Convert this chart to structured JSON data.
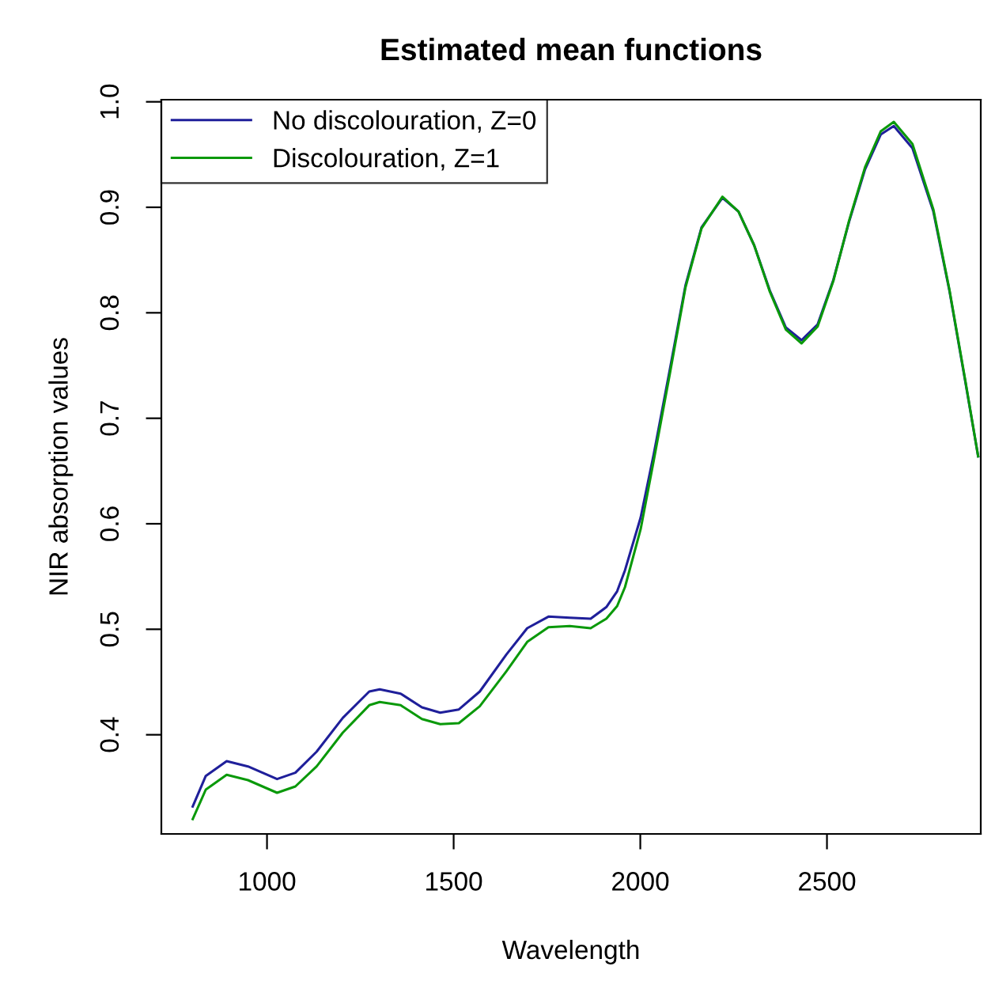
{
  "chart_data": {
    "type": "line",
    "title": "Estimated mean functions",
    "xlabel": "Wavelength",
    "ylabel": "NIR absorption values",
    "xlim": [
      717,
      2912
    ],
    "ylim": [
      0.306,
      1.002
    ],
    "xticks": [
      1000,
      1500,
      2000,
      2500
    ],
    "yticks": [
      0.4,
      0.5,
      0.6,
      0.7,
      0.8,
      0.9,
      {
        "value": 1.0,
        "label": "1.0"
      }
    ],
    "grid": false,
    "legend": "top left",
    "marker": "none",
    "line_style": "solid",
    "series": [
      {
        "name": "No discolouration, Z=0",
        "color": "#1f1f9a",
        "x": [
          801,
          836,
          892,
          949,
          1027,
          1076,
          1133,
          1203,
          1274,
          1302,
          1358,
          1415,
          1464,
          1514,
          1570,
          1641,
          1697,
          1754,
          1811,
          1867,
          1909,
          1938,
          1959,
          2001,
          2036,
          2079,
          2121,
          2164,
          2220,
          2263,
          2305,
          2347,
          2390,
          2432,
          2475,
          2517,
          2559,
          2602,
          2644,
          2679,
          2729,
          2785,
          2828,
          2870,
          2905
        ],
        "values": [
          0.332,
          0.361,
          0.375,
          0.37,
          0.358,
          0.364,
          0.384,
          0.416,
          0.441,
          0.443,
          0.439,
          0.426,
          0.421,
          0.424,
          0.441,
          0.476,
          0.501,
          0.512,
          0.511,
          0.51,
          0.521,
          0.536,
          0.556,
          0.606,
          0.666,
          0.746,
          0.826,
          0.881,
          0.909,
          0.896,
          0.864,
          0.821,
          0.786,
          0.774,
          0.789,
          0.831,
          0.886,
          0.936,
          0.969,
          0.977,
          0.956,
          0.896,
          0.821,
          0.736,
          0.664
        ]
      },
      {
        "name": "Discolouration, Z=1",
        "color": "#0a990a",
        "x": [
          801,
          836,
          892,
          949,
          1027,
          1076,
          1133,
          1203,
          1274,
          1302,
          1358,
          1415,
          1464,
          1514,
          1570,
          1641,
          1697,
          1754,
          1811,
          1867,
          1909,
          1938,
          1959,
          2001,
          2036,
          2079,
          2121,
          2164,
          2220,
          2263,
          2305,
          2347,
          2390,
          2432,
          2475,
          2517,
          2559,
          2602,
          2644,
          2679,
          2729,
          2785,
          2828,
          2870,
          2905
        ],
        "values": [
          0.32,
          0.348,
          0.362,
          0.357,
          0.345,
          0.351,
          0.37,
          0.402,
          0.428,
          0.431,
          0.428,
          0.415,
          0.41,
          0.411,
          0.427,
          0.46,
          0.488,
          0.502,
          0.503,
          0.501,
          0.51,
          0.522,
          0.54,
          0.595,
          0.66,
          0.742,
          0.824,
          0.88,
          0.91,
          0.896,
          0.864,
          0.82,
          0.784,
          0.771,
          0.787,
          0.83,
          0.887,
          0.938,
          0.972,
          0.981,
          0.96,
          0.898,
          0.822,
          0.737,
          0.664
        ]
      }
    ]
  }
}
